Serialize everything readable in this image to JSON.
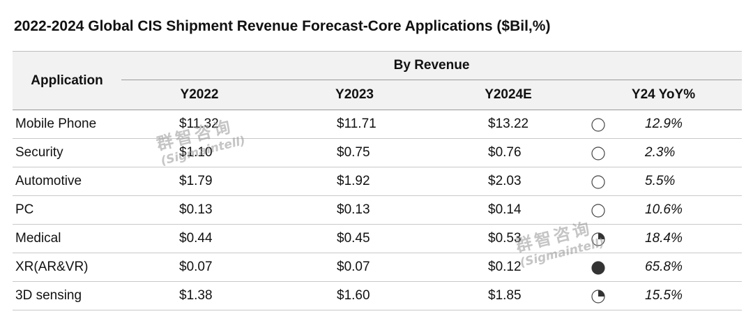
{
  "title": "2022-2024 Global CIS Shipment Revenue Forecast-Core Applications ($Bil,%)",
  "chart_data": {
    "type": "table",
    "title": "2022-2024 Global CIS Shipment Revenue Forecast-Core Applications ($Bil,%)",
    "header_group": "By Revenue",
    "columns": [
      "Application",
      "Y2022",
      "Y2023",
      "Y2024E",
      "Y24 YoY%"
    ],
    "rows": [
      {
        "application": "Mobile Phone",
        "y2022": "$11.32",
        "y2023": "$11.71",
        "y2024e": "$13.22",
        "yoy": "12.9%",
        "yoy_value": 12.9,
        "harvey_level": 0
      },
      {
        "application": "Security",
        "y2022": "$1.10",
        "y2023": "$0.75",
        "y2024e": "$0.76",
        "yoy": "2.3%",
        "yoy_value": 2.3,
        "harvey_level": 0
      },
      {
        "application": "Automotive",
        "y2022": "$1.79",
        "y2023": "$1.92",
        "y2024e": "$2.03",
        "yoy": "5.5%",
        "yoy_value": 5.5,
        "harvey_level": 0
      },
      {
        "application": "PC",
        "y2022": "$0.13",
        "y2023": "$0.13",
        "y2024e": "$0.14",
        "yoy": "10.6%",
        "yoy_value": 10.6,
        "harvey_level": 0
      },
      {
        "application": "Medical",
        "y2022": "$0.44",
        "y2023": "$0.45",
        "y2024e": "$0.53",
        "yoy": "18.4%",
        "yoy_value": 18.4,
        "harvey_level": 0.25
      },
      {
        "application": "XR(AR&VR)",
        "y2022": "$0.07",
        "y2023": "$0.07",
        "y2024e": "$0.12",
        "yoy": "65.8%",
        "yoy_value": 65.8,
        "harvey_level": 1
      },
      {
        "application": "3D sensing",
        "y2022": "$1.38",
        "y2023": "$1.60",
        "y2024e": "$1.85",
        "yoy": "15.5%",
        "yoy_value": 15.5,
        "harvey_level": 0.25
      }
    ]
  },
  "watermark": {
    "cn": "群智咨询",
    "en": "(Sigmaintell)"
  },
  "colors": {
    "header_bg": "#f2f2f2",
    "harvey_fill": "#333333",
    "watermark": "#969696"
  }
}
